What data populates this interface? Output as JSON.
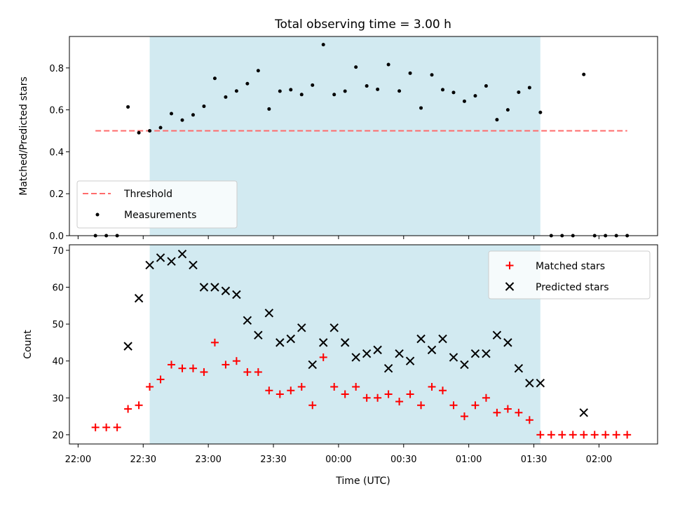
{
  "chart_data": {
    "type": "scatter",
    "title": "Total observing time = 3.00 h",
    "xlabel": "Time (UTC)",
    "x_ticks": [
      "22:00",
      "22:30",
      "23:00",
      "23:30",
      "00:00",
      "00:30",
      "01:00",
      "01:30",
      "02:00"
    ],
    "x_range": [
      "21:56",
      "02:27"
    ],
    "shaded_interval": [
      "22:33",
      "01:33"
    ],
    "shade_color": "#add8e6",
    "top_panel": {
      "ylabel": "Matched/Predicted stars",
      "ylim": [
        0,
        0.95
      ],
      "y_ticks": [
        "0.0",
        "0.2",
        "0.4",
        "0.6",
        "0.8"
      ],
      "legend_position": "lower-left",
      "threshold": {
        "name": "Threshold",
        "value": 0.5,
        "color": "#ff6b6b",
        "x_range": [
          "22:08",
          "02:13"
        ]
      },
      "series": [
        {
          "name": "Measurements",
          "color": "#000000",
          "marker": "dot",
          "points": [
            [
              "22:08",
              0.0
            ],
            [
              "22:13",
              0.0
            ],
            [
              "22:18",
              0.0
            ],
            [
              "22:23",
              0.614
            ],
            [
              "22:28",
              0.491
            ],
            [
              "22:33",
              0.5
            ],
            [
              "22:38",
              0.515
            ],
            [
              "22:43",
              0.582
            ],
            [
              "22:48",
              0.551
            ],
            [
              "22:53",
              0.576
            ],
            [
              "22:58",
              0.617
            ],
            [
              "23:03",
              0.75
            ],
            [
              "23:08",
              0.661
            ],
            [
              "23:13",
              0.69
            ],
            [
              "23:18",
              0.725
            ],
            [
              "23:23",
              0.787
            ],
            [
              "23:28",
              0.604
            ],
            [
              "23:33",
              0.689
            ],
            [
              "23:38",
              0.696
            ],
            [
              "23:43",
              0.673
            ],
            [
              "23:48",
              0.718
            ],
            [
              "23:53",
              0.911
            ],
            [
              "23:58",
              0.673
            ],
            [
              "00:03",
              0.689
            ],
            [
              "00:08",
              0.804
            ],
            [
              "00:13",
              0.714
            ],
            [
              "00:18",
              0.698
            ],
            [
              "00:23",
              0.816
            ],
            [
              "00:28",
              0.69
            ],
            [
              "00:33",
              0.775
            ],
            [
              "00:38",
              0.609
            ],
            [
              "00:43",
              0.767
            ],
            [
              "00:48",
              0.696
            ],
            [
              "00:53",
              0.683
            ],
            [
              "00:58",
              0.641
            ],
            [
              "01:03",
              0.667
            ],
            [
              "01:08",
              0.714
            ],
            [
              "01:13",
              0.553
            ],
            [
              "01:18",
              0.6
            ],
            [
              "01:23",
              0.684
            ],
            [
              "01:28",
              0.706
            ],
            [
              "01:33",
              0.588
            ],
            [
              "01:38",
              0.0
            ],
            [
              "01:43",
              0.0
            ],
            [
              "01:48",
              0.0
            ],
            [
              "01:53",
              0.769
            ],
            [
              "01:58",
              0.0
            ],
            [
              "02:03",
              0.0
            ],
            [
              "02:08",
              0.0
            ],
            [
              "02:13",
              0.0
            ]
          ]
        }
      ]
    },
    "bottom_panel": {
      "ylabel": "Count",
      "ylim": [
        17.5,
        71.5
      ],
      "y_ticks": [
        "20",
        "30",
        "40",
        "50",
        "60",
        "70"
      ],
      "legend_position": "top-right",
      "series": [
        {
          "name": "Matched stars",
          "color": "#ff0000",
          "marker": "plus",
          "points": [
            [
              "22:08",
              22
            ],
            [
              "22:13",
              22
            ],
            [
              "22:18",
              22
            ],
            [
              "22:23",
              27
            ],
            [
              "22:28",
              28
            ],
            [
              "22:33",
              33
            ],
            [
              "22:38",
              35
            ],
            [
              "22:43",
              39
            ],
            [
              "22:48",
              38
            ],
            [
              "22:53",
              38
            ],
            [
              "22:58",
              37
            ],
            [
              "23:03",
              45
            ],
            [
              "23:08",
              39
            ],
            [
              "23:13",
              40
            ],
            [
              "23:18",
              37
            ],
            [
              "23:23",
              37
            ],
            [
              "23:28",
              32
            ],
            [
              "23:33",
              31
            ],
            [
              "23:38",
              32
            ],
            [
              "23:43",
              33
            ],
            [
              "23:48",
              28
            ],
            [
              "23:53",
              41
            ],
            [
              "23:58",
              33
            ],
            [
              "00:03",
              31
            ],
            [
              "00:08",
              33
            ],
            [
              "00:13",
              30
            ],
            [
              "00:18",
              30
            ],
            [
              "00:23",
              31
            ],
            [
              "00:28",
              29
            ],
            [
              "00:33",
              31
            ],
            [
              "00:38",
              28
            ],
            [
              "00:43",
              33
            ],
            [
              "00:48",
              32
            ],
            [
              "00:53",
              28
            ],
            [
              "00:58",
              25
            ],
            [
              "01:03",
              28
            ],
            [
              "01:08",
              30
            ],
            [
              "01:13",
              26
            ],
            [
              "01:18",
              27
            ],
            [
              "01:23",
              26
            ],
            [
              "01:28",
              24
            ],
            [
              "01:33",
              20
            ],
            [
              "01:38",
              20
            ],
            [
              "01:43",
              20
            ],
            [
              "01:48",
              20
            ],
            [
              "01:53",
              20
            ],
            [
              "01:58",
              20
            ],
            [
              "02:03",
              20
            ],
            [
              "02:08",
              20
            ],
            [
              "02:13",
              20
            ]
          ]
        },
        {
          "name": "Predicted stars",
          "color": "#000000",
          "marker": "x",
          "points": [
            [
              "22:23",
              44
            ],
            [
              "22:28",
              57
            ],
            [
              "22:33",
              66
            ],
            [
              "22:38",
              68
            ],
            [
              "22:43",
              67
            ],
            [
              "22:48",
              69
            ],
            [
              "22:53",
              66
            ],
            [
              "22:58",
              60
            ],
            [
              "23:03",
              60
            ],
            [
              "23:08",
              59
            ],
            [
              "23:13",
              58
            ],
            [
              "23:18",
              51
            ],
            [
              "23:23",
              47
            ],
            [
              "23:28",
              53
            ],
            [
              "23:33",
              45
            ],
            [
              "23:38",
              46
            ],
            [
              "23:43",
              49
            ],
            [
              "23:48",
              39
            ],
            [
              "23:53",
              45
            ],
            [
              "23:58",
              49
            ],
            [
              "00:03",
              45
            ],
            [
              "00:08",
              41
            ],
            [
              "00:13",
              42
            ],
            [
              "00:18",
              43
            ],
            [
              "00:23",
              38
            ],
            [
              "00:28",
              42
            ],
            [
              "00:33",
              40
            ],
            [
              "00:38",
              46
            ],
            [
              "00:43",
              43
            ],
            [
              "00:48",
              46
            ],
            [
              "00:53",
              41
            ],
            [
              "00:58",
              39
            ],
            [
              "01:03",
              42
            ],
            [
              "01:08",
              42
            ],
            [
              "01:13",
              47
            ],
            [
              "01:18",
              45
            ],
            [
              "01:23",
              38
            ],
            [
              "01:28",
              34
            ],
            [
              "01:33",
              34
            ],
            [
              "01:53",
              26
            ]
          ]
        }
      ]
    }
  }
}
